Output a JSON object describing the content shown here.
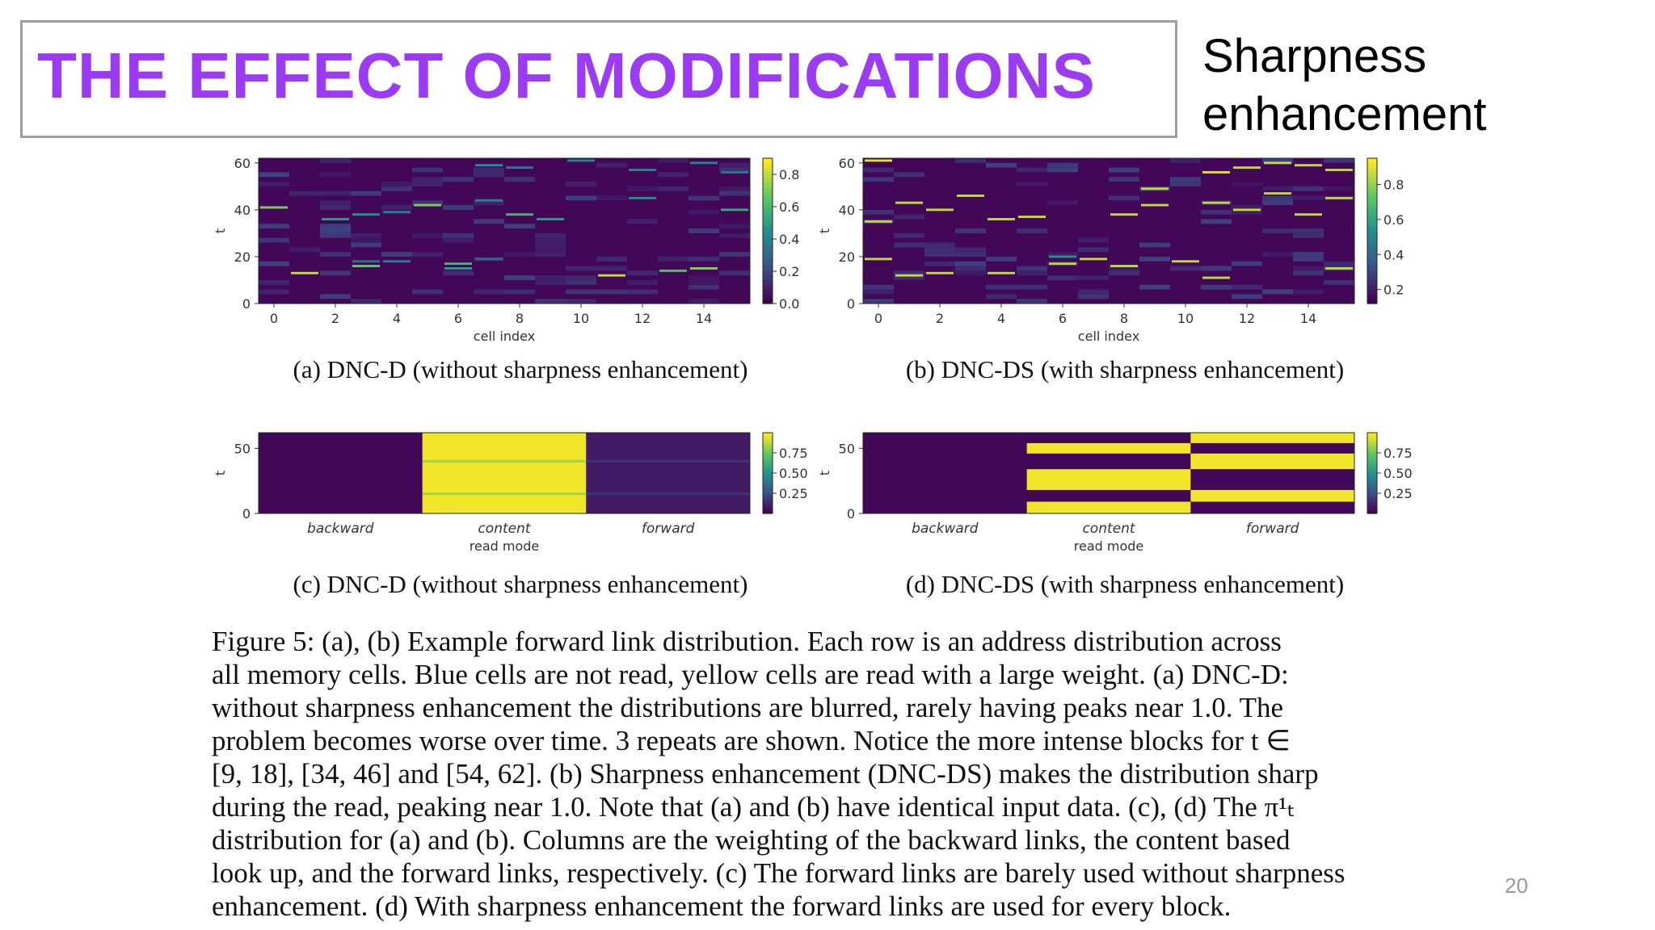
{
  "slide": {
    "title": "THE EFFECT OF MODIFICATIONS",
    "side_label_line1": "Sharpness",
    "side_label_line2": "enhancement",
    "page_number": "20"
  },
  "figure": {
    "caption_line1": "Figure 5: (a), (b) Example forward link distribution.  Each row is an address distribution across",
    "caption_line2": "all memory cells.  Blue cells are not read, yellow cells are read with a large weight.  (a) DNC-D:",
    "caption_line3": "without sharpness enhancement the distributions are blurred, rarely having peaks near 1.0.  The",
    "caption_line4": "problem becomes worse over time.  3 repeats are shown.  Notice the more intense blocks for t ∈",
    "caption_line5": "[9, 18], [34, 46] and [54, 62].  (b) Sharpness enhancement (DNC-DS) makes the distribution sharp",
    "caption_line6": "during the read, peaking near 1.0.  Note that (a) and (b) have identical input data.  (c), (d) The π¹ₜ",
    "caption_line7": "distribution for (a) and (b).  Columns are the weighting of the backward links, the content based",
    "caption_line8": "look up, and the forward links, respectively. (c) The forward links are barely used without sharpness",
    "caption_line9": "enhancement. (d) With sharpness enhancement the forward links are used for every block."
  },
  "chart_data": [
    {
      "type": "heatmap",
      "caption": "(a) DNC-D (without sharpness enhancement)",
      "xlabel": "cell index",
      "ylabel": "t",
      "x_ticks": [
        "0",
        "2",
        "4",
        "6",
        "8",
        "10",
        "12",
        "14"
      ],
      "y_ticks": [
        "0",
        "20",
        "40",
        "60"
      ],
      "colorbar_ticks": [
        "0.0",
        "0.2",
        "0.4",
        "0.6",
        "0.8"
      ],
      "xlim": [
        -0.5,
        15.5
      ],
      "ylim": [
        0,
        62
      ],
      "peaks": [
        {
          "cell": 0,
          "t": 41,
          "v": 0.8
        },
        {
          "cell": 1,
          "t": 13,
          "v": 0.9
        },
        {
          "cell": 2,
          "t": 36,
          "v": 0.55
        },
        {
          "cell": 3,
          "t": 38,
          "v": 0.5
        },
        {
          "cell": 3,
          "t": 16,
          "v": 0.75
        },
        {
          "cell": 3,
          "t": 18,
          "v": 0.35
        },
        {
          "cell": 4,
          "t": 39,
          "v": 0.45
        },
        {
          "cell": 4,
          "t": 18,
          "v": 0.4
        },
        {
          "cell": 5,
          "t": 42,
          "v": 0.8
        },
        {
          "cell": 6,
          "t": 17,
          "v": 0.65
        },
        {
          "cell": 6,
          "t": 15,
          "v": 0.55
        },
        {
          "cell": 7,
          "t": 59,
          "v": 0.5
        },
        {
          "cell": 7,
          "t": 44,
          "v": 0.45
        },
        {
          "cell": 7,
          "t": 19,
          "v": 0.35
        },
        {
          "cell": 8,
          "t": 58,
          "v": 0.4
        },
        {
          "cell": 8,
          "t": 38,
          "v": 0.65
        },
        {
          "cell": 9,
          "t": 36,
          "v": 0.55
        },
        {
          "cell": 10,
          "t": 61,
          "v": 0.45
        },
        {
          "cell": 11,
          "t": 12,
          "v": 0.9
        },
        {
          "cell": 12,
          "t": 57,
          "v": 0.45
        },
        {
          "cell": 12,
          "t": 45,
          "v": 0.5
        },
        {
          "cell": 13,
          "t": 14,
          "v": 0.7
        },
        {
          "cell": 14,
          "t": 15,
          "v": 0.8
        },
        {
          "cell": 14,
          "t": 60,
          "v": 0.45
        },
        {
          "cell": 15,
          "t": 40,
          "v": 0.6
        },
        {
          "cell": 15,
          "t": 56,
          "v": 0.4
        }
      ]
    },
    {
      "type": "heatmap",
      "caption": "(b) DNC-DS (with sharpness enhancement)",
      "xlabel": "cell index",
      "ylabel": "t",
      "x_ticks": [
        "0",
        "2",
        "4",
        "6",
        "8",
        "10",
        "12",
        "14"
      ],
      "y_ticks": [
        "0",
        "20",
        "40",
        "60"
      ],
      "colorbar_ticks": [
        "0.2",
        "0.4",
        "0.6",
        "0.8"
      ],
      "xlim": [
        -0.5,
        15.5
      ],
      "ylim": [
        0,
        62
      ],
      "peaks": [
        {
          "cell": 0,
          "t": 61,
          "v": 0.95
        },
        {
          "cell": 0,
          "t": 35,
          "v": 0.9
        },
        {
          "cell": 0,
          "t": 19,
          "v": 0.9
        },
        {
          "cell": 1,
          "t": 43,
          "v": 0.9
        },
        {
          "cell": 1,
          "t": 12,
          "v": 0.9
        },
        {
          "cell": 2,
          "t": 40,
          "v": 0.9
        },
        {
          "cell": 2,
          "t": 13,
          "v": 0.9
        },
        {
          "cell": 3,
          "t": 46,
          "v": 0.9
        },
        {
          "cell": 4,
          "t": 36,
          "v": 0.9
        },
        {
          "cell": 4,
          "t": 13,
          "v": 0.9
        },
        {
          "cell": 5,
          "t": 37,
          "v": 0.9
        },
        {
          "cell": 6,
          "t": 20,
          "v": 0.5
        },
        {
          "cell": 6,
          "t": 17,
          "v": 0.9
        },
        {
          "cell": 7,
          "t": 19,
          "v": 0.9
        },
        {
          "cell": 8,
          "t": 38,
          "v": 0.9
        },
        {
          "cell": 8,
          "t": 16,
          "v": 0.9
        },
        {
          "cell": 9,
          "t": 42,
          "v": 0.9
        },
        {
          "cell": 9,
          "t": 49,
          "v": 0.9
        },
        {
          "cell": 10,
          "t": 18,
          "v": 0.9
        },
        {
          "cell": 11,
          "t": 56,
          "v": 0.95
        },
        {
          "cell": 11,
          "t": 43,
          "v": 0.9
        },
        {
          "cell": 11,
          "t": 11,
          "v": 0.9
        },
        {
          "cell": 12,
          "t": 40,
          "v": 0.9
        },
        {
          "cell": 12,
          "t": 58,
          "v": 0.9
        },
        {
          "cell": 13,
          "t": 60,
          "v": 0.9
        },
        {
          "cell": 13,
          "t": 47,
          "v": 0.9
        },
        {
          "cell": 14,
          "t": 59,
          "v": 0.9
        },
        {
          "cell": 14,
          "t": 38,
          "v": 0.9
        },
        {
          "cell": 15,
          "t": 57,
          "v": 0.9
        },
        {
          "cell": 15,
          "t": 45,
          "v": 0.9
        },
        {
          "cell": 15,
          "t": 15,
          "v": 0.9
        }
      ]
    },
    {
      "type": "heatmap",
      "caption": "(c) DNC-D (without sharpness enhancement)",
      "xlabel": "read mode",
      "ylabel": "t",
      "categories": [
        "backward",
        "content",
        "forward"
      ],
      "y_ticks": [
        "0",
        "50"
      ],
      "colorbar_ticks": [
        "0.25",
        "0.50",
        "0.75"
      ],
      "ylim": [
        0,
        62
      ],
      "column_values": [
        0.02,
        0.98,
        0.08
      ],
      "stripes": [
        {
          "col": 1,
          "t": 40,
          "v": 0.85
        },
        {
          "col": 1,
          "t": 15,
          "v": 0.85
        },
        {
          "col": 2,
          "t": 40,
          "v": 0.16
        },
        {
          "col": 2,
          "t": 15,
          "v": 0.16
        }
      ]
    },
    {
      "type": "heatmap",
      "caption": "(d) DNC-DS (with sharpness enhancement)",
      "xlabel": "read mode",
      "ylabel": "t",
      "categories": [
        "backward",
        "content",
        "forward"
      ],
      "y_ticks": [
        "0",
        "50"
      ],
      "colorbar_ticks": [
        "0.25",
        "0.50",
        "0.75"
      ],
      "ylim": [
        0,
        62
      ],
      "column_values": [
        0.02,
        0.02,
        0.02
      ],
      "blocks": [
        {
          "col": 1,
          "t0": 0,
          "t1": 9,
          "v": 0.98
        },
        {
          "col": 1,
          "t0": 18,
          "t1": 34,
          "v": 0.98
        },
        {
          "col": 1,
          "t0": 46,
          "t1": 54,
          "v": 0.98
        },
        {
          "col": 2,
          "t0": 9,
          "t1": 18,
          "v": 0.98
        },
        {
          "col": 2,
          "t0": 34,
          "t1": 46,
          "v": 0.98
        },
        {
          "col": 2,
          "t0": 54,
          "t1": 62,
          "v": 0.98
        }
      ]
    }
  ]
}
